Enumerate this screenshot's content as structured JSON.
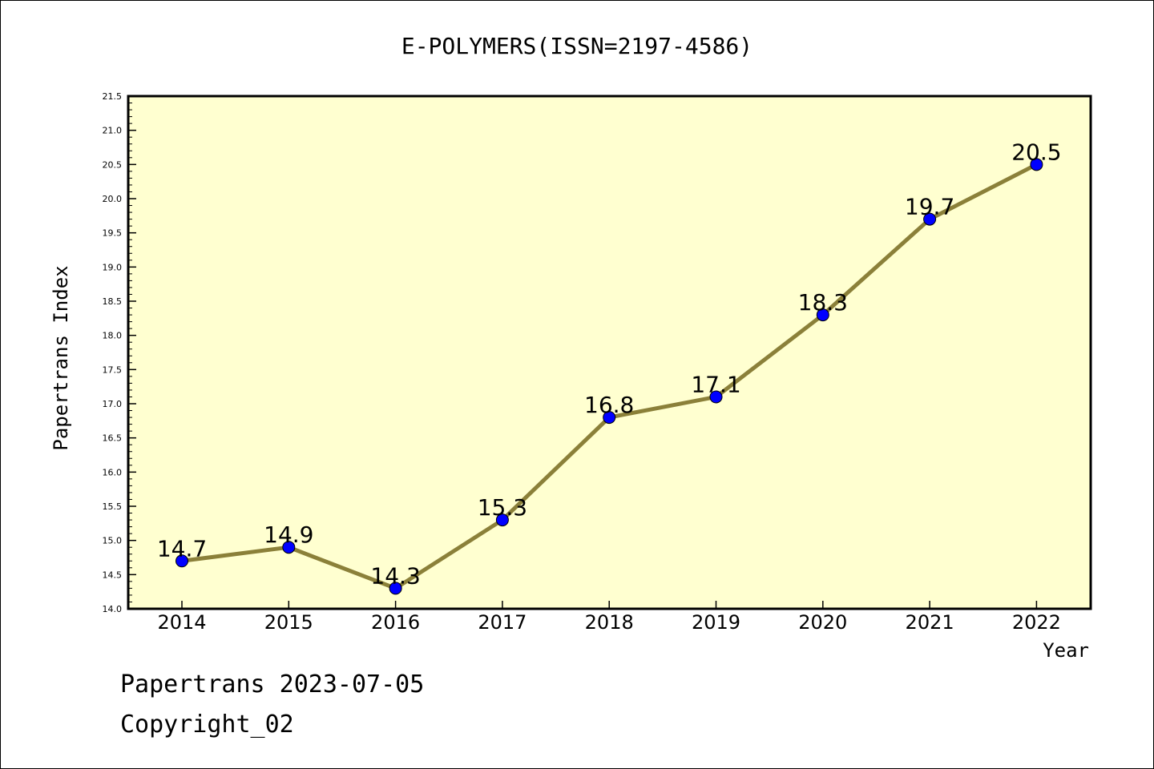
{
  "chart_data": {
    "type": "line",
    "title": "E-POLYMERS(ISSN=2197-4586)",
    "xlabel": "Year",
    "ylabel": "Papertrans Index",
    "categories": [
      "2014",
      "2015",
      "2016",
      "2017",
      "2018",
      "2019",
      "2020",
      "2021",
      "2022"
    ],
    "series": [
      {
        "values": [
          14.7,
          14.9,
          14.3,
          15.3,
          16.8,
          17.1,
          18.3,
          19.7,
          20.5
        ]
      }
    ],
    "data_labels": [
      "14.7",
      "14.9",
      "14.3",
      "15.3",
      "16.8",
      "17.1",
      "18.3",
      "19.7",
      "20.5"
    ],
    "ylim": [
      14.0,
      21.5
    ],
    "yticks": [
      "14.0",
      "14.5",
      "15.0",
      "15.5",
      "16.0",
      "16.5",
      "17.0",
      "17.5",
      "18.0",
      "18.5",
      "19.0",
      "19.5",
      "20.0",
      "20.5",
      "21.0",
      "21.5"
    ],
    "colors": {
      "plot_background": "#ffffd0",
      "line": "#8b8039",
      "marker": "#0000ff"
    },
    "grid": false
  },
  "footer": {
    "line1": "Papertrans 2023-07-05",
    "line2": "Copyright_02"
  }
}
